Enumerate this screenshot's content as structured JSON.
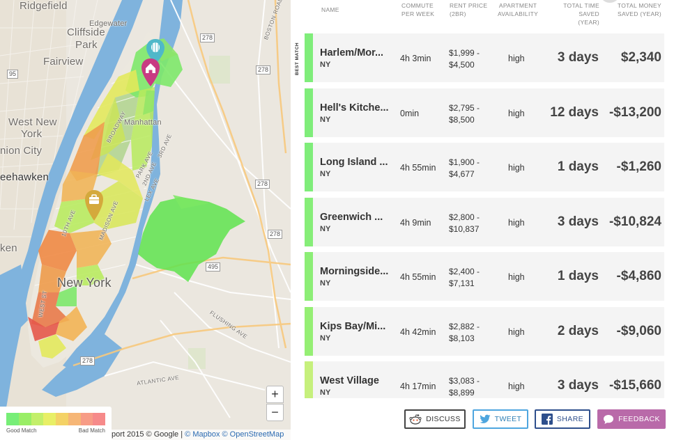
{
  "map": {
    "labels": {
      "ridgefield": "Ridgefield",
      "edgewater": "Edgewater",
      "cliffside": "Cliffside",
      "park": "Park",
      "fairview": "Fairview",
      "west_new_york_1": "West New",
      "west_new_york_2": "York",
      "union_city": "nion City",
      "weehawken": "eehawken",
      "hoboken": "ken",
      "new_york": "New York",
      "manhattan": "Manhattan",
      "boston_road": "BOSTON ROAD",
      "broadway": "BROADWAY",
      "tenth_ave": "10TH AVE",
      "madison_ave": "MADISON AVE",
      "west_st": "WEST ST",
      "third_ave": "3RD AVE",
      "second_ave": "2ND AVE",
      "flushing_ave": "FLUSHING AVE",
      "atlantic_ave": "ATLANTIC AVE",
      "park_ave": "PARK AVE",
      "lex_ave": "LEX AVE"
    },
    "highways": [
      "278",
      "278",
      "278",
      "278",
      "495",
      "278",
      "95"
    ],
    "zoom_in": "+",
    "zoom_out": "−",
    "legend": {
      "colors": [
        "#77ee77",
        "#99ee66",
        "#c3ef6a",
        "#e8ef66",
        "#f4d266",
        "#f6b676",
        "#f79c86",
        "#f68a8a"
      ],
      "good": "Good Match",
      "bad": "Bad Match"
    },
    "attribution": {
      "prefix": "port 2015 © Google |",
      "mapbox": "© Mapbox",
      "osm": "© OpenStreetMap"
    },
    "pins": {
      "balloon": "balloon-pin",
      "home": "home-pin",
      "work": "briefcase-pin"
    },
    "zone_colors": {
      "green": "#7ee86a",
      "lime": "#b7ea5d",
      "yellow": "#e3e85a",
      "orange": "#f0b355",
      "darkorange": "#ef9b4b",
      "red": "#ec7a4a"
    }
  },
  "table": {
    "headers": {
      "name": "NAME",
      "commute": [
        "COMMUTE",
        "PER WEEK"
      ],
      "rent": [
        "RENT PRICE",
        "(2BR)"
      ],
      "availability": [
        "APARTMENT",
        "AVAILABILITY"
      ],
      "time": [
        "TOTAL TIME",
        "SAVED (YEAR)"
      ],
      "money": [
        "TOTAL MONEY",
        "SAVED (YEAR)"
      ]
    },
    "best_match": "BEST MATCH",
    "rows": [
      {
        "name": "Harlem/Mor...",
        "state": "NY",
        "commute": "4h 3min",
        "rent_low": "$1,999 -",
        "rent_high": "$4,500",
        "availability": "high",
        "time": "3 days",
        "money": "$2,340",
        "color": "#7fed7a"
      },
      {
        "name": "Hell's Kitche...",
        "state": "NY",
        "commute": "0min",
        "rent_low": "$2,795 -",
        "rent_high": "$8,500",
        "availability": "high",
        "time": "12 days",
        "money": "-$13,200",
        "color": "#7fed7a"
      },
      {
        "name": "Long Island ...",
        "state": "NY",
        "commute": "4h 55min",
        "rent_low": "$1,900 -",
        "rent_high": "$4,677",
        "availability": "high",
        "time": "1 days",
        "money": "-$1,260",
        "color": "#7fed7a"
      },
      {
        "name": "Greenwich ...",
        "state": "NY",
        "commute": "4h 9min",
        "rent_low": "$2,800 -",
        "rent_high": "$10,837",
        "availability": "high",
        "time": "3 days",
        "money": "-$10,824",
        "color": "#86ee78"
      },
      {
        "name": "Morningside...",
        "state": "NY",
        "commute": "4h 55min",
        "rent_low": "$2,400 -",
        "rent_high": "$7,131",
        "availability": "high",
        "time": "1 days",
        "money": "-$4,860",
        "color": "#8cee76"
      },
      {
        "name": "Kips Bay/Mi...",
        "state": "NY",
        "commute": "4h 42min",
        "rent_low": "$2,882 -",
        "rent_high": "$8,103",
        "availability": "high",
        "time": "2 days",
        "money": "-$9,060",
        "color": "#95ef74"
      },
      {
        "name": "West Village",
        "state": "NY",
        "commute": "4h 17min",
        "rent_low": "$3,083 -",
        "rent_high": "$8,899",
        "availability": "high",
        "time": "3 days",
        "money": "-$15,660",
        "color": "#c6f07c"
      }
    ]
  },
  "buttons": {
    "discuss": "DISCUSS",
    "tweet": "TWEET",
    "share": "SHARE",
    "feedback": "FEEDBACK"
  },
  "icons": {
    "discuss": "reddit-icon",
    "tweet": "twitter-icon",
    "share": "facebook-icon",
    "feedback": "speech-bubble-icon"
  }
}
